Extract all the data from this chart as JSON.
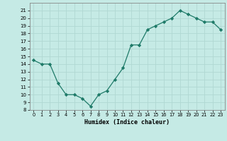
{
  "x": [
    0,
    1,
    2,
    3,
    4,
    5,
    6,
    7,
    8,
    9,
    10,
    11,
    12,
    13,
    14,
    15,
    16,
    17,
    18,
    19,
    20,
    21,
    22,
    23
  ],
  "y": [
    14.5,
    14.0,
    14.0,
    11.5,
    10.0,
    10.0,
    9.5,
    8.5,
    10.0,
    10.5,
    12.0,
    13.5,
    16.5,
    16.5,
    18.5,
    19.0,
    19.5,
    20.0,
    21.0,
    20.5,
    20.0,
    19.5,
    19.5,
    18.5
  ],
  "title": "",
  "xlabel": "Humidex (Indice chaleur)",
  "ylabel": "",
  "ylim": [
    8,
    22
  ],
  "xlim": [
    -0.5,
    23.5
  ],
  "bg_color": "#c5eae5",
  "grid_major_color": "#b0d8d2",
  "grid_minor_color": "#d0eeea",
  "line_color": "#1e7a68",
  "marker_color": "#1e7a68",
  "yticks": [
    8,
    9,
    10,
    11,
    12,
    13,
    14,
    15,
    16,
    17,
    18,
    19,
    20,
    21
  ],
  "xticks": [
    0,
    1,
    2,
    3,
    4,
    5,
    6,
    7,
    8,
    9,
    10,
    11,
    12,
    13,
    14,
    15,
    16,
    17,
    18,
    19,
    20,
    21,
    22,
    23
  ]
}
